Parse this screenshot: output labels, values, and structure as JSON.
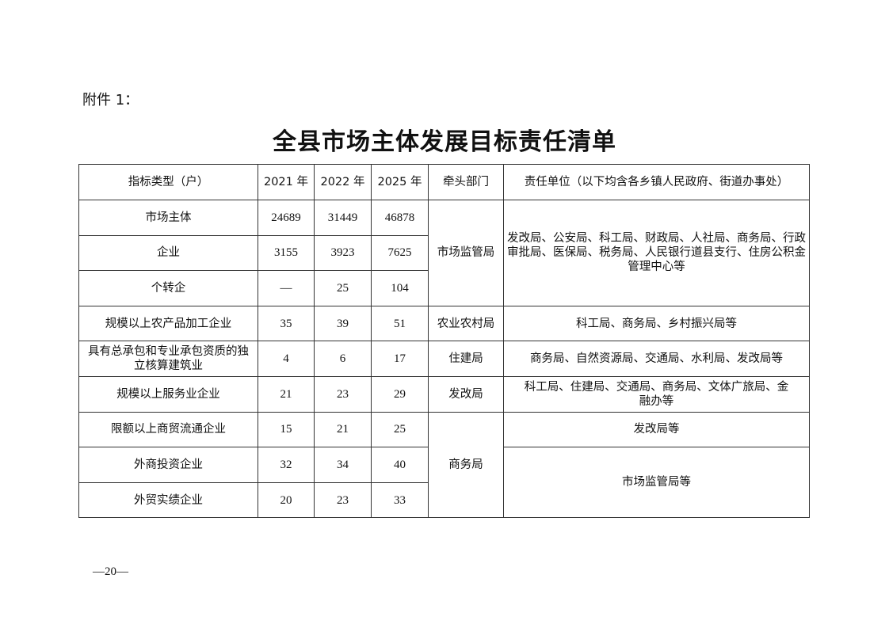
{
  "attachment_label": "附件 1：",
  "title": "全县市场主体发展目标责任清单",
  "table": {
    "headers": [
      "指标类型（户）",
      "2021 年",
      "2022 年",
      "2025 年",
      "牵头部门",
      "责任单位（以下均含各乡镇人民政府、街道办事处）"
    ],
    "rows": [
      {
        "type": "市场主体",
        "y2021": "24689",
        "y2022": "31449",
        "y2025": "46878"
      },
      {
        "type": "企业",
        "y2021": "3155",
        "y2022": "3923",
        "y2025": "7625"
      },
      {
        "type": "个转企",
        "y2021": "—",
        "y2022": "25",
        "y2025": "104"
      },
      {
        "type": "规模以上农产品加工企业",
        "y2021": "35",
        "y2022": "39",
        "y2025": "51"
      },
      {
        "type": "具有总承包和专业承包资质的独立核算建筑业",
        "y2021": "4",
        "y2022": "6",
        "y2025": "17"
      },
      {
        "type": "规模以上服务业企业",
        "y2021": "21",
        "y2022": "23",
        "y2025": "29"
      },
      {
        "type": "限额以上商贸流通企业",
        "y2021": "15",
        "y2022": "21",
        "y2025": "25"
      },
      {
        "type": "外商投资企业",
        "y2021": "32",
        "y2022": "34",
        "y2025": "40"
      },
      {
        "type": "外贸实绩企业",
        "y2021": "20",
        "y2022": "23",
        "y2025": "33"
      }
    ],
    "lead": [
      "市场监管局",
      "农业农村局",
      "住建局",
      "发改局",
      "商务局"
    ],
    "responsible": [
      "发改局、公安局、科工局、财政局、人社局、商务局、行政审批局、医保局、税务局、人民银行道县支行、住房公积金管理中心等",
      "科工局、商务局、乡村振兴局等",
      "商务局、自然资源局、交通局、水利局、发改局等",
      "科工局、住建局、交通局、商务局、文体广旅局、金融办等",
      "发改局等",
      "市场监管局等"
    ]
  },
  "page_number": "—20—"
}
